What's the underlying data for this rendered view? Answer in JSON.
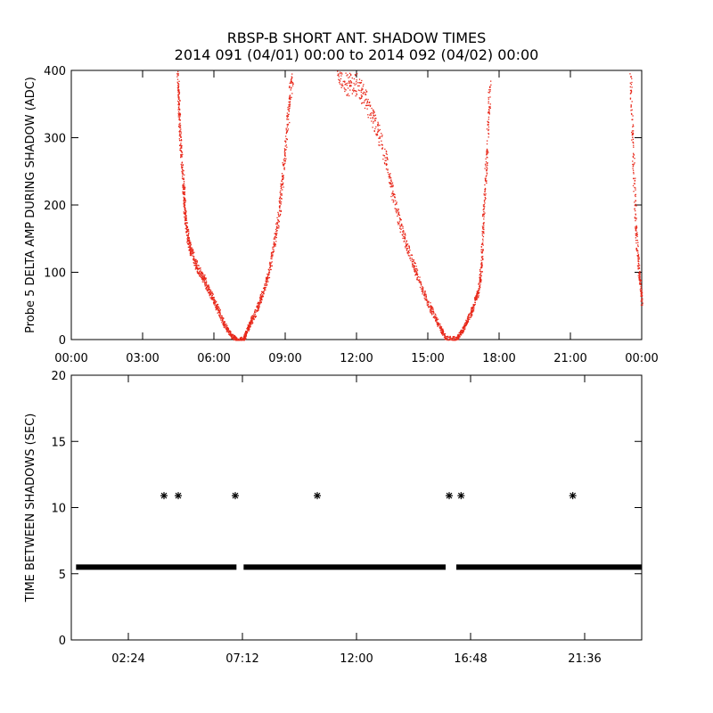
{
  "figure": {
    "title_line1": "RBSP-B SHORT ANT. SHADOW TIMES",
    "title_line2": "2014 091 (04/01) 00:00 to 2014 092 (04/02) 00:00"
  },
  "colors": {
    "points_top": "#e8281a",
    "points_bottom": "#000000",
    "axes": "#000000"
  },
  "chart_data": [
    {
      "type": "scatter",
      "ylabel": "Probe 5 DELTA AMP DURING SHADOW (ADC)",
      "xlabel": "",
      "x_units": "hours",
      "xlim": [
        0,
        24
      ],
      "ylim": [
        0,
        400
      ],
      "xticks": [
        0,
        3,
        6,
        9,
        12,
        15,
        18,
        21,
        24
      ],
      "xtick_labels": [
        "00:00",
        "03:00",
        "06:00",
        "09:00",
        "12:00",
        "15:00",
        "18:00",
        "21:00",
        "00:00"
      ],
      "yticks": [
        0,
        100,
        200,
        300,
        400
      ],
      "ytick_labels": [
        "0",
        "100",
        "200",
        "300",
        "400"
      ],
      "marker_color": "#e8281a",
      "series": [
        {
          "points": [
            [
              4.45,
              400
            ],
            [
              4.5,
              360
            ],
            [
              4.55,
              320
            ],
            [
              4.6,
              280
            ],
            [
              4.7,
              230
            ],
            [
              4.75,
              200
            ],
            [
              4.8,
              175
            ],
            [
              4.9,
              150
            ],
            [
              5.0,
              135
            ],
            [
              5.2,
              115
            ],
            [
              5.4,
              100
            ],
            [
              5.6,
              88
            ],
            [
              5.8,
              72
            ],
            [
              6.0,
              58
            ],
            [
              6.2,
              42
            ],
            [
              6.4,
              25
            ],
            [
              6.6,
              12
            ],
            [
              6.8,
              4
            ],
            [
              6.95,
              0
            ],
            [
              7.25,
              2
            ],
            [
              7.35,
              12
            ],
            [
              7.5,
              25
            ],
            [
              7.7,
              38
            ],
            [
              7.9,
              55
            ],
            [
              8.1,
              75
            ],
            [
              8.3,
              100
            ],
            [
              8.5,
              140
            ],
            [
              8.7,
              180
            ],
            [
              8.85,
              230
            ],
            [
              9.0,
              290
            ],
            [
              9.15,
              350
            ],
            [
              9.3,
              400
            ],
            [
              11.2,
              400
            ],
            [
              11.6,
              380
            ],
            [
              12.0,
              380
            ],
            [
              12.4,
              355
            ],
            [
              12.8,
              320
            ],
            [
              13.2,
              270
            ],
            [
              13.5,
              220
            ],
            [
              13.8,
              175
            ],
            [
              14.1,
              140
            ],
            [
              14.4,
              110
            ],
            [
              14.7,
              80
            ],
            [
              15.0,
              55
            ],
            [
              15.3,
              32
            ],
            [
              15.55,
              15
            ],
            [
              15.75,
              3
            ],
            [
              16.2,
              2
            ],
            [
              16.4,
              12
            ],
            [
              16.6,
              25
            ],
            [
              16.8,
              40
            ],
            [
              17.0,
              60
            ],
            [
              17.15,
              80
            ],
            [
              17.25,
              110
            ],
            [
              17.3,
              170
            ],
            [
              17.4,
              230
            ],
            [
              17.5,
              300
            ],
            [
              17.6,
              380
            ],
            [
              23.5,
              400
            ],
            [
              23.6,
              300
            ],
            [
              23.7,
              200
            ],
            [
              23.8,
              130
            ],
            [
              23.9,
              90
            ],
            [
              24.0,
              55
            ]
          ]
        }
      ]
    },
    {
      "type": "scatter",
      "ylabel": "TIME BETWEEN SHADOWS (SEC)",
      "xlabel": "",
      "x_units": "hours",
      "xlim": [
        0,
        24
      ],
      "ylim": [
        0,
        20
      ],
      "xticks": [
        2.4,
        7.2,
        12.0,
        16.8,
        21.6
      ],
      "xtick_labels": [
        "02:24",
        "07:12",
        "12:00",
        "16:48",
        "21:36"
      ],
      "yticks": [
        0,
        5,
        10,
        15,
        20
      ],
      "ytick_labels": [
        "0",
        "5",
        "10",
        "15",
        "20"
      ],
      "marker": "asterisk",
      "marker_color": "#000000",
      "baseline_value": 5.5,
      "baseline_ranges": [
        [
          0.2,
          6.95
        ],
        [
          7.25,
          15.75
        ],
        [
          16.2,
          24.0
        ]
      ],
      "series": [
        {
          "name": "",
          "x": [
            3.9,
            4.5,
            6.9,
            10.35,
            15.9,
            16.4,
            21.1
          ],
          "y": [
            10.9,
            10.9,
            10.9,
            10.9,
            10.9,
            10.9,
            10.9
          ]
        }
      ]
    }
  ]
}
